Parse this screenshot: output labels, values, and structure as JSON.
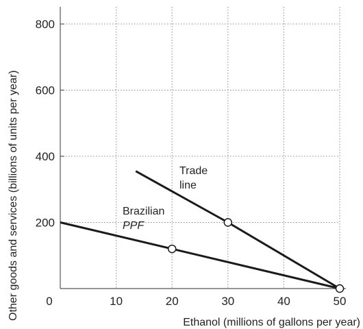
{
  "chart_data": {
    "type": "line",
    "xlabel": "Ethanol (millions of gallons per year)",
    "ylabel": "Other goods and services (billions of units per year)",
    "xlim": [
      0,
      50
    ],
    "ylim": [
      0,
      800
    ],
    "x_ticks": [
      0,
      10,
      20,
      30,
      40,
      50
    ],
    "y_ticks": [
      200,
      400,
      600,
      800
    ],
    "grid": true,
    "series": [
      {
        "name": "Trade line",
        "points": [
          [
            13.5,
            355
          ],
          [
            30,
            200
          ],
          [
            50,
            0
          ]
        ]
      },
      {
        "name": "Brazilian PPF",
        "points": [
          [
            0,
            200
          ],
          [
            20,
            120
          ],
          [
            50,
            0
          ]
        ]
      }
    ],
    "markers": [
      [
        30,
        200
      ],
      [
        20,
        120
      ],
      [
        50,
        0
      ]
    ],
    "annotations": {
      "trade_line_1": "Trade",
      "trade_line_2": "line",
      "ppf_1": "Brazilian",
      "ppf_2": "PPF"
    },
    "colors": {
      "line": "#1a1a1a",
      "grid": "#8a8a8a",
      "text": "#222222"
    }
  }
}
